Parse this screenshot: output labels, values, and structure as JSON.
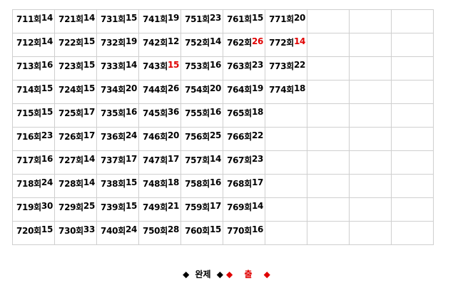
{
  "round_suffix": "회",
  "highlight_color": "#e00000",
  "columns": [
    [
      {
        "r": "711",
        "v": "14"
      },
      {
        "r": "712",
        "v": "14"
      },
      {
        "r": "713",
        "v": "16"
      },
      {
        "r": "714",
        "v": "15"
      },
      {
        "r": "715",
        "v": "15"
      },
      {
        "r": "716",
        "v": "23"
      },
      {
        "r": "717",
        "v": "16"
      },
      {
        "r": "718",
        "v": "24"
      },
      {
        "r": "719",
        "v": "30"
      },
      {
        "r": "720",
        "v": "15"
      }
    ],
    [
      {
        "r": "721",
        "v": "14"
      },
      {
        "r": "722",
        "v": "15"
      },
      {
        "r": "723",
        "v": "15"
      },
      {
        "r": "724",
        "v": "15"
      },
      {
        "r": "725",
        "v": "17"
      },
      {
        "r": "726",
        "v": "17"
      },
      {
        "r": "727",
        "v": "14"
      },
      {
        "r": "728",
        "v": "14"
      },
      {
        "r": "729",
        "v": "25"
      },
      {
        "r": "730",
        "v": "33"
      }
    ],
    [
      {
        "r": "731",
        "v": "15"
      },
      {
        "r": "732",
        "v": "19"
      },
      {
        "r": "733",
        "v": "14"
      },
      {
        "r": "734",
        "v": "20"
      },
      {
        "r": "735",
        "v": "16"
      },
      {
        "r": "736",
        "v": "24"
      },
      {
        "r": "737",
        "v": "17"
      },
      {
        "r": "738",
        "v": "15"
      },
      {
        "r": "739",
        "v": "15"
      },
      {
        "r": "740",
        "v": "24"
      }
    ],
    [
      {
        "r": "741",
        "v": "19"
      },
      {
        "r": "742",
        "v": "12"
      },
      {
        "r": "743",
        "v": "15",
        "hl": true
      },
      {
        "r": "744",
        "v": "26"
      },
      {
        "r": "745",
        "v": "36"
      },
      {
        "r": "746",
        "v": "20"
      },
      {
        "r": "747",
        "v": "17"
      },
      {
        "r": "748",
        "v": "18"
      },
      {
        "r": "749",
        "v": "21"
      },
      {
        "r": "750",
        "v": "28"
      }
    ],
    [
      {
        "r": "751",
        "v": "23"
      },
      {
        "r": "752",
        "v": "14"
      },
      {
        "r": "753",
        "v": "16"
      },
      {
        "r": "754",
        "v": "20"
      },
      {
        "r": "755",
        "v": "16"
      },
      {
        "r": "756",
        "v": "25"
      },
      {
        "r": "757",
        "v": "14"
      },
      {
        "r": "758",
        "v": "16"
      },
      {
        "r": "759",
        "v": "17"
      },
      {
        "r": "760",
        "v": "15"
      }
    ],
    [
      {
        "r": "761",
        "v": "15"
      },
      {
        "r": "762",
        "v": "26",
        "hl": true
      },
      {
        "r": "763",
        "v": "23"
      },
      {
        "r": "764",
        "v": "19"
      },
      {
        "r": "765",
        "v": "18"
      },
      {
        "r": "766",
        "v": "22"
      },
      {
        "r": "767",
        "v": "23"
      },
      {
        "r": "768",
        "v": "17"
      },
      {
        "r": "769",
        "v": "14"
      },
      {
        "r": "770",
        "v": "16"
      }
    ],
    [
      {
        "r": "771",
        "v": "20"
      },
      {
        "r": "772",
        "v": "14",
        "hl": true
      },
      {
        "r": "773",
        "v": "22"
      },
      {
        "r": "774",
        "v": "18"
      }
    ]
  ],
  "legend": {
    "complete_label": "완제",
    "out_label": "출",
    "diamond": "◆"
  }
}
